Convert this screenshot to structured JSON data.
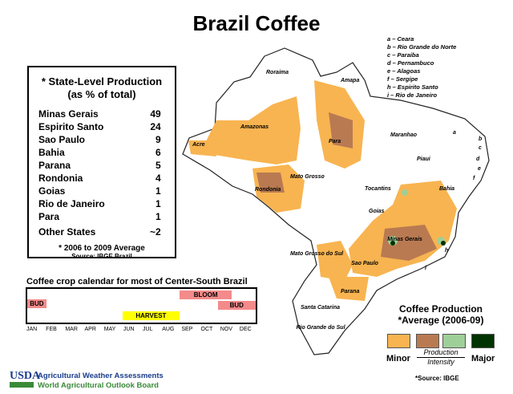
{
  "title": "Brazil Coffee",
  "stats": {
    "heading1": "* State-Level Production",
    "heading2": "(as % of total)",
    "rows": [
      {
        "state": "Minas Gerais",
        "value": "49"
      },
      {
        "state": "Espirito Santo",
        "value": "24"
      },
      {
        "state": "Sao Paulo",
        "value": "9"
      },
      {
        "state": "Bahia",
        "value": "6"
      },
      {
        "state": "Parana",
        "value": "5"
      },
      {
        "state": "Rondonia",
        "value": "4"
      },
      {
        "state": "Goias",
        "value": "1"
      },
      {
        "state": "Rio de Janeiro",
        "value": "1"
      },
      {
        "state": "Para",
        "value": "1"
      },
      {
        "state": "Other States",
        "value": "~2"
      }
    ],
    "footnote": "* 2006 to 2009 Average",
    "source": "Source: IBGE Brazil"
  },
  "calendar": {
    "title": "Coffee crop calendar for most of Center-South Brazil",
    "months": [
      "JAN",
      "FEB",
      "MAR",
      "APR",
      "MAY",
      "JUN",
      "JUL",
      "AUG",
      "SEP",
      "OCT",
      "NOV",
      "DEC"
    ],
    "phases": [
      {
        "label": "BUD",
        "start_month": 1,
        "end_month": 1,
        "color": "#f48a8a"
      },
      {
        "label": "BLOOM",
        "start_month": 9,
        "end_month": 11,
        "color": "#f48a8a"
      },
      {
        "label": "BUD",
        "start_month": 11,
        "end_month": 12,
        "color": "#f48a8a"
      },
      {
        "label": "HARVEST",
        "start_month": 6,
        "end_month": 8,
        "color": "#ffff00"
      }
    ]
  },
  "key": {
    "items": [
      "a – Ceara",
      "b – Rio Grande do Norte",
      "c – Paraiba",
      "d – Pernambuco",
      "e – Alagoas",
      "f – Sergipe",
      "h – Espirito Santo",
      "i – Rio de Janeiro"
    ]
  },
  "map": {
    "states": [
      "Roraima",
      "Amapa",
      "Amazonas",
      "Para",
      "Maranhao",
      "Acre",
      "Piaui",
      "Rondonia",
      "Mato Grosso",
      "Tocantins",
      "Bahia",
      "Goias",
      "Minas Gerais",
      "Mato Grosso do Sul",
      "Sao Paulo",
      "Parana",
      "Santa Catarina",
      "Rio Grande do Sul"
    ],
    "letters": [
      "a",
      "b",
      "c",
      "d",
      "e",
      "f",
      "h",
      "i"
    ]
  },
  "legend": {
    "title1": "Coffee Production",
    "title2": "*Average (2006-09)",
    "minor": "Minor",
    "major": "Major",
    "axis1": "Production",
    "axis2": "Intensity",
    "source": "*Source: IBGE",
    "colors": [
      "#f8b450",
      "#b97a52",
      "#9fcf98",
      "#003300"
    ]
  },
  "footer": {
    "logo": "USDA",
    "line1": "Agricultural Weather Assessments",
    "line2": "World Agricultural Outlook Board"
  }
}
